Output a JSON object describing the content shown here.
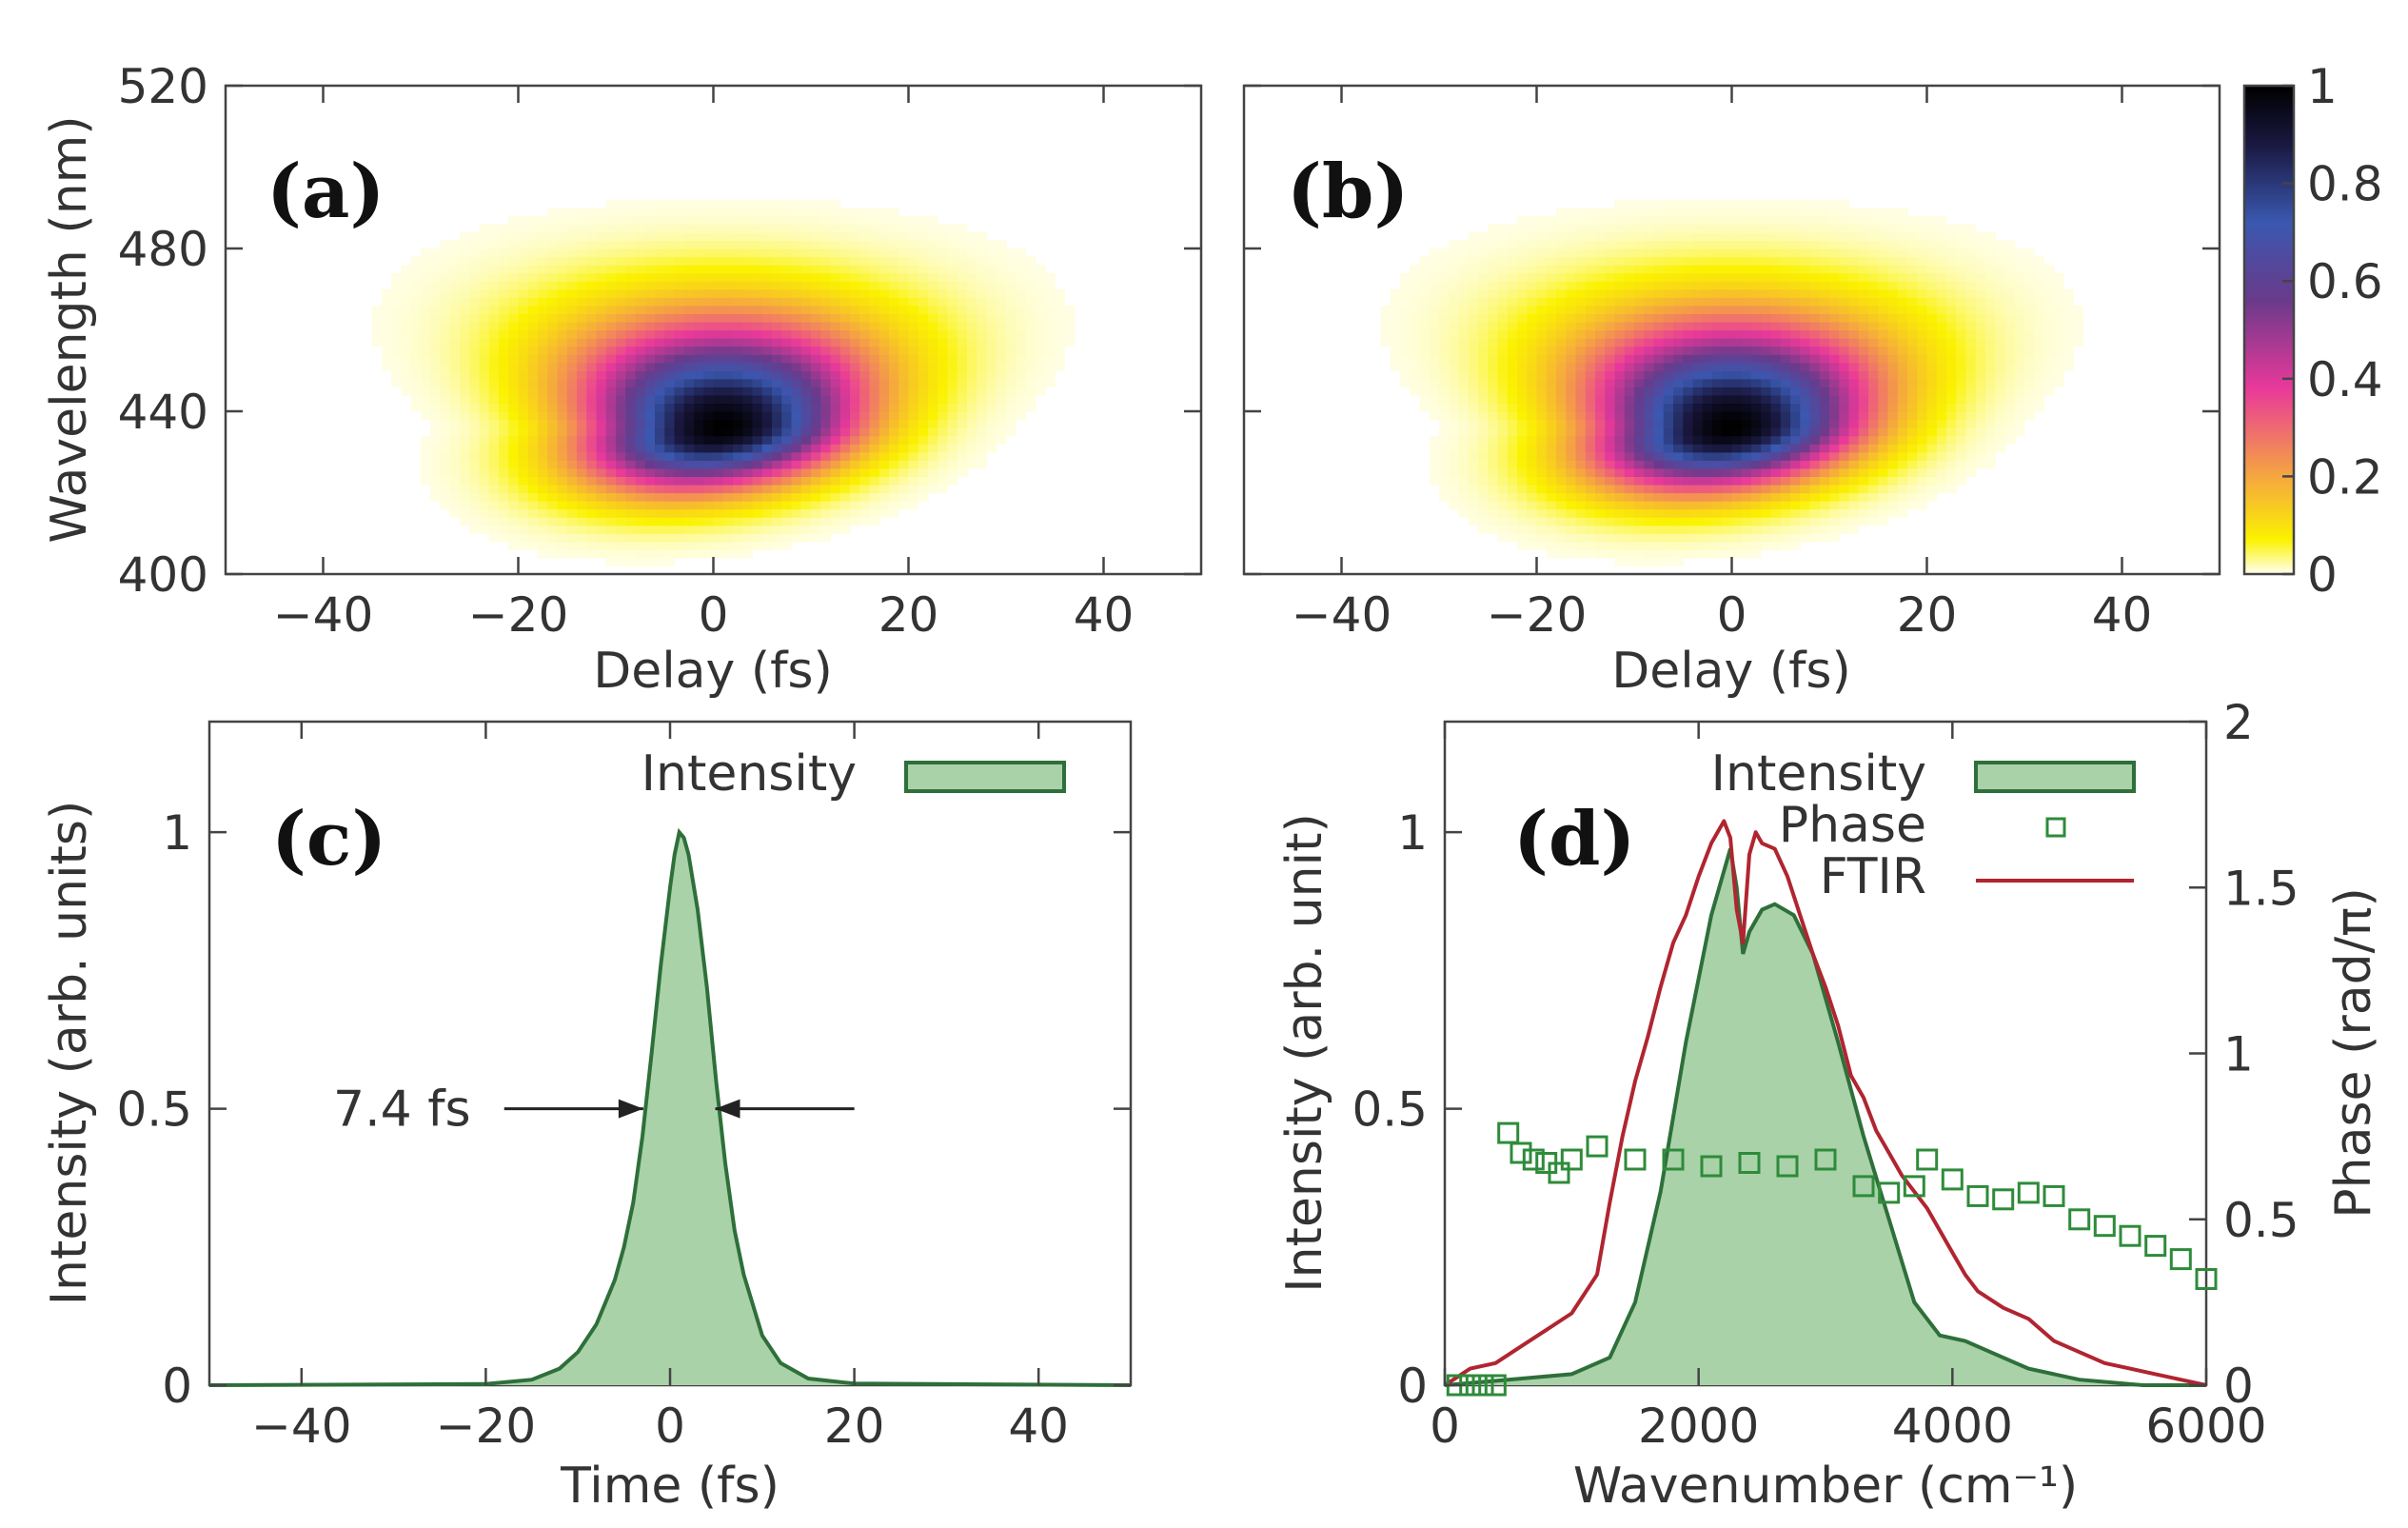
{
  "chart_data": [
    {
      "id": "a",
      "type": "heatmap",
      "panel_label": "(a)",
      "xlabel": "Delay (fs)",
      "ylabel": "Wavelength (nm)",
      "xlim": [
        -50,
        50
      ],
      "ylim": [
        400,
        520
      ],
      "xticks": [
        -40,
        -20,
        0,
        20,
        40
      ],
      "xtick_labels": [
        "−40",
        "−20",
        "0",
        "20",
        "40"
      ],
      "yticks": [
        400,
        440,
        480,
        520
      ],
      "ytick_labels": [
        "400",
        "440",
        "480",
        "520"
      ],
      "peak": {
        "delay": 1,
        "wavelength": 436,
        "value": 1.0
      }
    },
    {
      "id": "b",
      "type": "heatmap",
      "panel_label": "(b)",
      "xlabel": "Delay (fs)",
      "xlim": [
        -50,
        50
      ],
      "ylim": [
        400,
        520
      ],
      "xticks": [
        -40,
        -20,
        0,
        20,
        40
      ],
      "xtick_labels": [
        "−40",
        "−20",
        "0",
        "20",
        "40"
      ],
      "yticks": [
        400,
        440,
        480,
        520
      ],
      "peak": {
        "delay": 0,
        "wavelength": 436,
        "value": 1.0
      },
      "colorbar": {
        "range": [
          0,
          1
        ],
        "ticks": [
          0,
          0.2,
          0.4,
          0.6,
          0.8,
          1
        ],
        "tick_labels": [
          "0",
          "0.2",
          "0.4",
          "0.6",
          "0.8",
          "1"
        ],
        "colors": [
          "#fffff2",
          "#fbf200",
          "#f5a640",
          "#e9399a",
          "#6a3a8a",
          "#3a58b0",
          "#1a1840",
          "#000000"
        ]
      }
    },
    {
      "id": "c",
      "type": "area",
      "panel_label": "(c)",
      "xlabel": "Time (fs)",
      "ylabel": "Intensity (arb. units)",
      "xlim": [
        -50,
        50
      ],
      "ylim": [
        0,
        1.2
      ],
      "xticks": [
        -40,
        -20,
        0,
        20,
        40
      ],
      "xtick_labels": [
        "−40",
        "−20",
        "0",
        "20",
        "40"
      ],
      "yticks": [
        0,
        0.5,
        1
      ],
      "ytick_labels": [
        "0",
        "0.5",
        "1"
      ],
      "legend": [
        {
          "label": "Intensity"
        }
      ],
      "legend_position": "top-right",
      "annotation": {
        "text": "7.4 fs",
        "y": 0.5,
        "fwhm": 7.4,
        "center": 1
      },
      "series": [
        {
          "name": "Intensity",
          "x": [
            -50,
            -20,
            -15,
            -12,
            -10,
            -8,
            -6,
            -5,
            -4,
            -3,
            -2,
            -1,
            0,
            0.5,
            1,
            1.5,
            2,
            3,
            4,
            5,
            6,
            7,
            8,
            10,
            12,
            15,
            20,
            50
          ],
          "y": [
            0,
            0.002,
            0.01,
            0.03,
            0.06,
            0.11,
            0.19,
            0.25,
            0.33,
            0.45,
            0.6,
            0.76,
            0.9,
            0.96,
            1.0,
            0.99,
            0.96,
            0.86,
            0.72,
            0.55,
            0.4,
            0.28,
            0.2,
            0.09,
            0.04,
            0.012,
            0.003,
            0
          ]
        }
      ]
    },
    {
      "id": "d",
      "type": "line",
      "panel_label": "(d)",
      "xlabel": "Wavenumber (cm⁻¹)",
      "ylabel": "Intensity (arb. unit)",
      "y2label": "Phase (rad/π)",
      "xlim": [
        0,
        6000
      ],
      "ylim": [
        0,
        1.2
      ],
      "y2lim": [
        0,
        2
      ],
      "xticks": [
        0,
        2000,
        4000,
        6000
      ],
      "xtick_labels": [
        "0",
        "2000",
        "4000",
        "6000"
      ],
      "yticks": [
        0,
        0.5,
        1
      ],
      "ytick_labels": [
        "0",
        "0.5",
        "1"
      ],
      "y2ticks": [
        0,
        0.5,
        1,
        1.5,
        2
      ],
      "y2tick_labels": [
        "0",
        "0.5",
        "1",
        "1.5",
        "2"
      ],
      "legend": [
        {
          "label": "Intensity"
        },
        {
          "label": "Phase"
        },
        {
          "label": "FTIR"
        }
      ],
      "legend_position": "top-right",
      "series": [
        {
          "name": "Intensity",
          "axis": "left",
          "x": [
            0,
            500,
            1000,
            1300,
            1500,
            1700,
            1900,
            2100,
            2250,
            2300,
            2350,
            2400,
            2500,
            2600,
            2750,
            2900,
            3100,
            3300,
            3500,
            3700,
            3900,
            4100,
            4300,
            4600,
            5000,
            5500,
            6000
          ],
          "y": [
            0,
            0.01,
            0.02,
            0.05,
            0.15,
            0.35,
            0.62,
            0.85,
            0.97,
            0.9,
            0.78,
            0.82,
            0.86,
            0.87,
            0.85,
            0.78,
            0.62,
            0.45,
            0.3,
            0.15,
            0.09,
            0.08,
            0.06,
            0.03,
            0.01,
            0.0,
            0.0
          ]
        },
        {
          "name": "Phase",
          "axis": "right",
          "x": [
            100,
            200,
            300,
            400,
            500,
            600,
            700,
            800,
            900,
            1000,
            1200,
            1500,
            1800,
            2100,
            2400,
            2700,
            3000,
            3300,
            3500,
            3700,
            3800,
            4000,
            4200,
            4400,
            4600,
            4800,
            5000,
            5200,
            5400,
            5600,
            5800,
            6000
          ],
          "y": [
            0,
            0,
            0,
            0,
            0.76,
            0.7,
            0.68,
            0.67,
            0.64,
            0.68,
            0.72,
            0.68,
            0.68,
            0.66,
            0.67,
            0.66,
            0.68,
            0.6,
            0.58,
            0.6,
            0.68,
            0.62,
            0.57,
            0.56,
            0.58,
            0.57,
            0.5,
            0.48,
            0.45,
            0.42,
            0.38,
            0.32
          ]
        },
        {
          "name": "FTIR",
          "axis": "left",
          "x": [
            0,
            200,
            400,
            600,
            800,
            1000,
            1200,
            1300,
            1400,
            1500,
            1600,
            1700,
            1800,
            1900,
            2000,
            2100,
            2200,
            2250,
            2300,
            2350,
            2400,
            2450,
            2500,
            2600,
            2700,
            2800,
            2900,
            3000,
            3100,
            3200,
            3300,
            3400,
            3500,
            3600,
            3700,
            3800,
            3900,
            4000,
            4100,
            4200,
            4400,
            4600,
            4800,
            5000,
            5200,
            5400,
            5600,
            5800,
            6000
          ],
          "y": [
            0.0,
            0.03,
            0.04,
            0.07,
            0.1,
            0.13,
            0.2,
            0.33,
            0.45,
            0.55,
            0.63,
            0.72,
            0.8,
            0.85,
            0.92,
            0.98,
            1.02,
            0.99,
            0.86,
            0.8,
            0.96,
            1.0,
            0.98,
            0.97,
            0.92,
            0.85,
            0.78,
            0.72,
            0.65,
            0.56,
            0.52,
            0.46,
            0.42,
            0.38,
            0.35,
            0.32,
            0.28,
            0.24,
            0.2,
            0.17,
            0.14,
            0.12,
            0.08,
            0.06,
            0.04,
            0.03,
            0.02,
            0.01,
            0.0
          ]
        }
      ]
    }
  ]
}
